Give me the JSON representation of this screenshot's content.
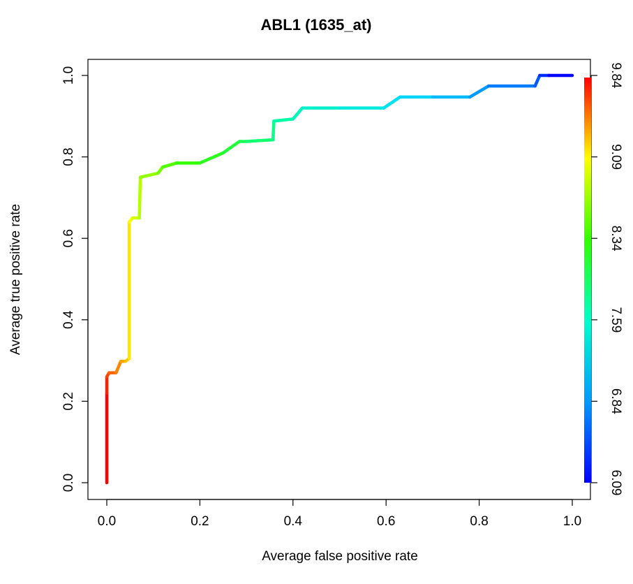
{
  "chart_data": {
    "type": "line",
    "title": "ABL1 (1635_at)",
    "xlabel": "Average false positive rate",
    "ylabel": "Average true positive rate",
    "xlim": [
      0,
      1
    ],
    "ylim": [
      0,
      1
    ],
    "x_ticks": [
      "0.0",
      "0.2",
      "0.4",
      "0.6",
      "0.8",
      "1.0"
    ],
    "y_ticks": [
      "0.0",
      "0.2",
      "0.4",
      "0.6",
      "0.8",
      "1.0"
    ],
    "grid": false,
    "legend": "none",
    "colorbar": {
      "position": "right",
      "range": [
        6.09,
        9.84
      ],
      "tick_labels": [
        "6.09",
        "6.84",
        "7.59",
        "8.34",
        "9.09",
        "9.84"
      ],
      "palette": "rainbow (red = high cutoff, blue = low cutoff)"
    },
    "series": [
      {
        "x": [
          0,
          0,
          0,
          0.005,
          0.02,
          0.03,
          0.04,
          0.048,
          0.048,
          0.055,
          0.07,
          0.072,
          0.11,
          0.12,
          0.15,
          0.2,
          0.25,
          0.285,
          0.3,
          0.357,
          0.359,
          0.4,
          0.42,
          0.5,
          0.595,
          0.63,
          0.7,
          0.78,
          0.82,
          0.92,
          0.93,
          0.95,
          1.0
        ],
        "y": [
          0,
          0.22,
          0.26,
          0.27,
          0.27,
          0.298,
          0.298,
          0.305,
          0.64,
          0.65,
          0.65,
          0.75,
          0.76,
          0.775,
          0.785,
          0.785,
          0.81,
          0.838,
          0.838,
          0.842,
          0.888,
          0.893,
          0.92,
          0.92,
          0.92,
          0.947,
          0.947,
          0.947,
          0.974,
          0.974,
          1.0,
          1.0,
          1.0
        ]
      }
    ]
  }
}
